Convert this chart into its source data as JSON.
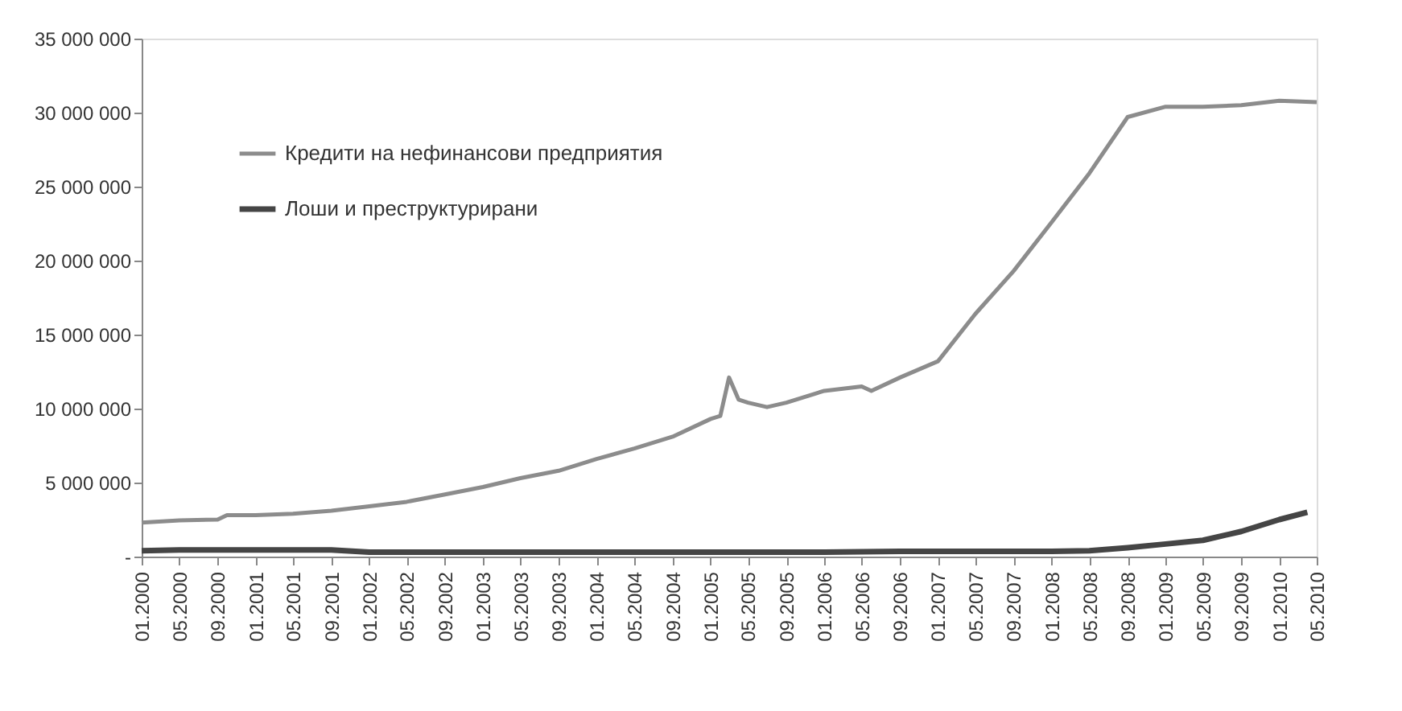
{
  "chart_data": {
    "type": "line",
    "xlim": [
      "2000-01",
      "2010-05"
    ],
    "xticks": [
      {
        "value": "2000-01",
        "label": "01.2000"
      },
      {
        "value": "2000-05",
        "label": "05.2000"
      },
      {
        "value": "2000-09",
        "label": "09.2000"
      },
      {
        "value": "2001-01",
        "label": "01.2001"
      },
      {
        "value": "2001-05",
        "label": "05.2001"
      },
      {
        "value": "2001-09",
        "label": "09.2001"
      },
      {
        "value": "2002-01",
        "label": "01.2002"
      },
      {
        "value": "2002-05",
        "label": "05.2002"
      },
      {
        "value": "2002-09",
        "label": "09.2002"
      },
      {
        "value": "2003-01",
        "label": "01.2003"
      },
      {
        "value": "2003-05",
        "label": "05.2003"
      },
      {
        "value": "2003-09",
        "label": "09.2003"
      },
      {
        "value": "2004-01",
        "label": "01.2004"
      },
      {
        "value": "2004-05",
        "label": "05.2004"
      },
      {
        "value": "2004-09",
        "label": "09.2004"
      },
      {
        "value": "2005-01",
        "label": "01.2005"
      },
      {
        "value": "2005-05",
        "label": "05.2005"
      },
      {
        "value": "2005-09",
        "label": "09.2005"
      },
      {
        "value": "2006-01",
        "label": "01.2006"
      },
      {
        "value": "2006-05",
        "label": "05.2006"
      },
      {
        "value": "2006-09",
        "label": "09.2006"
      },
      {
        "value": "2007-01",
        "label": "01.2007"
      },
      {
        "value": "2007-05",
        "label": "05.2007"
      },
      {
        "value": "2007-09",
        "label": "09.2007"
      },
      {
        "value": "2008-01",
        "label": "01.2008"
      },
      {
        "value": "2008-05",
        "label": "05.2008"
      },
      {
        "value": "2008-09",
        "label": "09.2008"
      },
      {
        "value": "2009-01",
        "label": "01.2009"
      },
      {
        "value": "2009-05",
        "label": "05.2009"
      },
      {
        "value": "2009-09",
        "label": "09.2009"
      },
      {
        "value": "2010-01",
        "label": "01.2010"
      },
      {
        "value": "2010-05",
        "label": "05.2010"
      }
    ],
    "ylim": [
      0,
      35000000
    ],
    "yticks": [
      {
        "value": 0,
        "label": "-"
      },
      {
        "value": 5000000,
        "label": "5 000 000"
      },
      {
        "value": 10000000,
        "label": "10 000 000"
      },
      {
        "value": 15000000,
        "label": "15 000 000"
      },
      {
        "value": 20000000,
        "label": "20 000 000"
      },
      {
        "value": 25000000,
        "label": "25 000 000"
      },
      {
        "value": 30000000,
        "label": "30 000 000"
      },
      {
        "value": 35000000,
        "label": "35 000 000"
      }
    ],
    "grid": false,
    "legend": "top left",
    "line_style": "solid",
    "marker": "none",
    "series": [
      {
        "name": "Кредити на нефинансови предприятия",
        "color": "#8c8c8c",
        "x": [
          "2000-01",
          "2000-05",
          "2000-09",
          "2000-10",
          "2001-01",
          "2001-05",
          "2001-09",
          "2002-01",
          "2002-05",
          "2002-09",
          "2003-01",
          "2003-05",
          "2003-09",
          "2004-01",
          "2004-05",
          "2004-09",
          "2005-01",
          "2005-02",
          "2005-03",
          "2005-04",
          "2005-05",
          "2005-07",
          "2005-09",
          "2006-01",
          "2006-05",
          "2006-06",
          "2006-09",
          "2007-01",
          "2007-05",
          "2007-09",
          "2008-01",
          "2008-05",
          "2008-09",
          "2009-01",
          "2009-05",
          "2009-09",
          "2010-01",
          "2010-05"
        ],
        "values": [
          2300000,
          2450000,
          2500000,
          2800000,
          2800000,
          2900000,
          3100000,
          3400000,
          3700000,
          4200000,
          4700000,
          5300000,
          5800000,
          6600000,
          7300000,
          8100000,
          9300000,
          9500000,
          12100000,
          10600000,
          10400000,
          10100000,
          10400000,
          11200000,
          11500000,
          11200000,
          12100000,
          13200000,
          16400000,
          19300000,
          22600000,
          25900000,
          29700000,
          30400000,
          30400000,
          30500000,
          30800000,
          30700000
        ]
      },
      {
        "name": "Лоши и преструктурирани",
        "color": "#454545",
        "x": [
          "2000-01",
          "2000-05",
          "2001-01",
          "2001-09",
          "2002-01",
          "2003-01",
          "2004-01",
          "2005-01",
          "2006-01",
          "2006-09",
          "2007-05",
          "2008-01",
          "2008-05",
          "2008-09",
          "2009-01",
          "2009-05",
          "2009-09",
          "2010-01",
          "2010-04"
        ],
        "values": [
          400000,
          450000,
          450000,
          450000,
          300000,
          300000,
          300000,
          300000,
          300000,
          350000,
          350000,
          350000,
          400000,
          600000,
          850000,
          1100000,
          1700000,
          2500000,
          3000000
        ]
      }
    ]
  }
}
